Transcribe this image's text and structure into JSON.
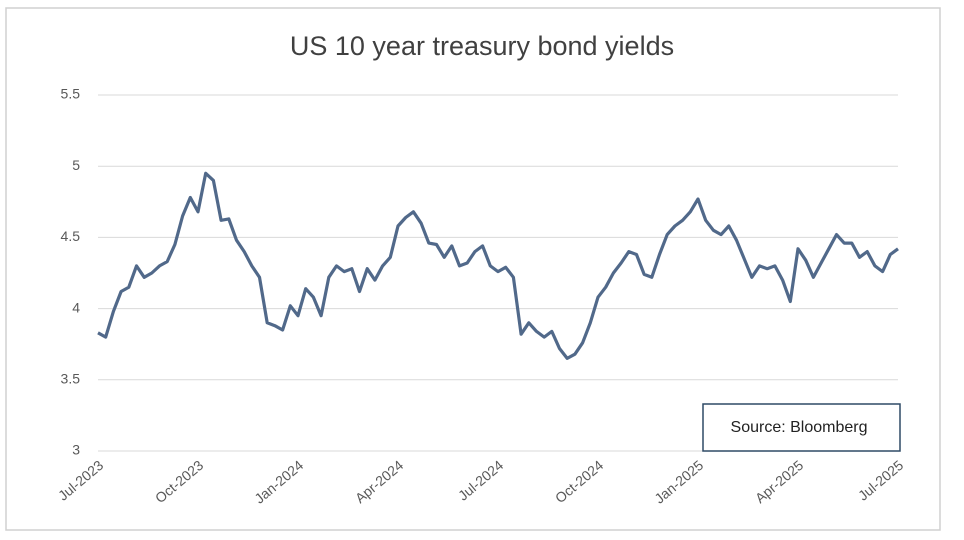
{
  "chart_data": {
    "type": "line",
    "title": "US 10 year treasury bond yields",
    "annotation": "Source: Bloomberg",
    "categories": [
      "Jul-2023",
      null,
      null,
      null,
      null,
      null,
      null,
      null,
      null,
      null,
      null,
      null,
      null,
      "Oct-2023",
      null,
      null,
      null,
      null,
      null,
      null,
      null,
      null,
      null,
      null,
      null,
      null,
      "Jan-2024",
      null,
      null,
      null,
      null,
      null,
      null,
      null,
      null,
      null,
      null,
      null,
      null,
      "Apr-2024",
      null,
      null,
      null,
      null,
      null,
      null,
      null,
      null,
      null,
      null,
      null,
      null,
      "Jul-2024",
      null,
      null,
      null,
      null,
      null,
      null,
      null,
      null,
      null,
      null,
      null,
      null,
      "Oct-2024",
      null,
      null,
      null,
      null,
      null,
      null,
      null,
      null,
      null,
      null,
      null,
      null,
      "Jan-2025",
      null,
      null,
      null,
      null,
      null,
      null,
      null,
      null,
      null,
      null,
      null,
      null,
      "Apr-2025",
      null,
      null,
      null,
      null,
      null,
      null,
      null,
      null,
      null,
      null,
      null,
      null,
      "Jul-2025"
    ],
    "values": [
      3.83,
      3.8,
      3.98,
      4.12,
      4.15,
      4.3,
      4.22,
      4.25,
      4.3,
      4.33,
      4.45,
      4.65,
      4.78,
      4.68,
      4.95,
      4.9,
      4.62,
      4.63,
      4.48,
      4.4,
      4.3,
      4.22,
      3.9,
      3.88,
      3.85,
      4.02,
      3.95,
      4.14,
      4.08,
      3.95,
      4.22,
      4.3,
      4.26,
      4.28,
      4.12,
      4.28,
      4.2,
      4.3,
      4.36,
      4.58,
      4.64,
      4.68,
      4.6,
      4.46,
      4.45,
      4.36,
      4.44,
      4.3,
      4.32,
      4.4,
      4.44,
      4.3,
      4.26,
      4.29,
      4.22,
      3.82,
      3.9,
      3.84,
      3.8,
      3.84,
      3.72,
      3.65,
      3.68,
      3.76,
      3.9,
      4.08,
      4.15,
      4.25,
      4.32,
      4.4,
      4.38,
      4.24,
      4.22,
      4.38,
      4.52,
      4.58,
      4.62,
      4.68,
      4.77,
      4.62,
      4.55,
      4.52,
      4.58,
      4.48,
      4.35,
      4.22,
      4.3,
      4.28,
      4.3,
      4.2,
      4.05,
      4.42,
      4.34,
      4.22,
      4.32,
      4.42,
      4.52,
      4.46,
      4.46,
      4.36,
      4.4,
      4.3,
      4.26,
      4.38,
      4.42
    ],
    "color": "#51698a",
    "ylim": [
      3,
      5.5
    ],
    "yticks": [
      3,
      3.5,
      4,
      4.5,
      5,
      5.5
    ],
    "grid": true
  }
}
